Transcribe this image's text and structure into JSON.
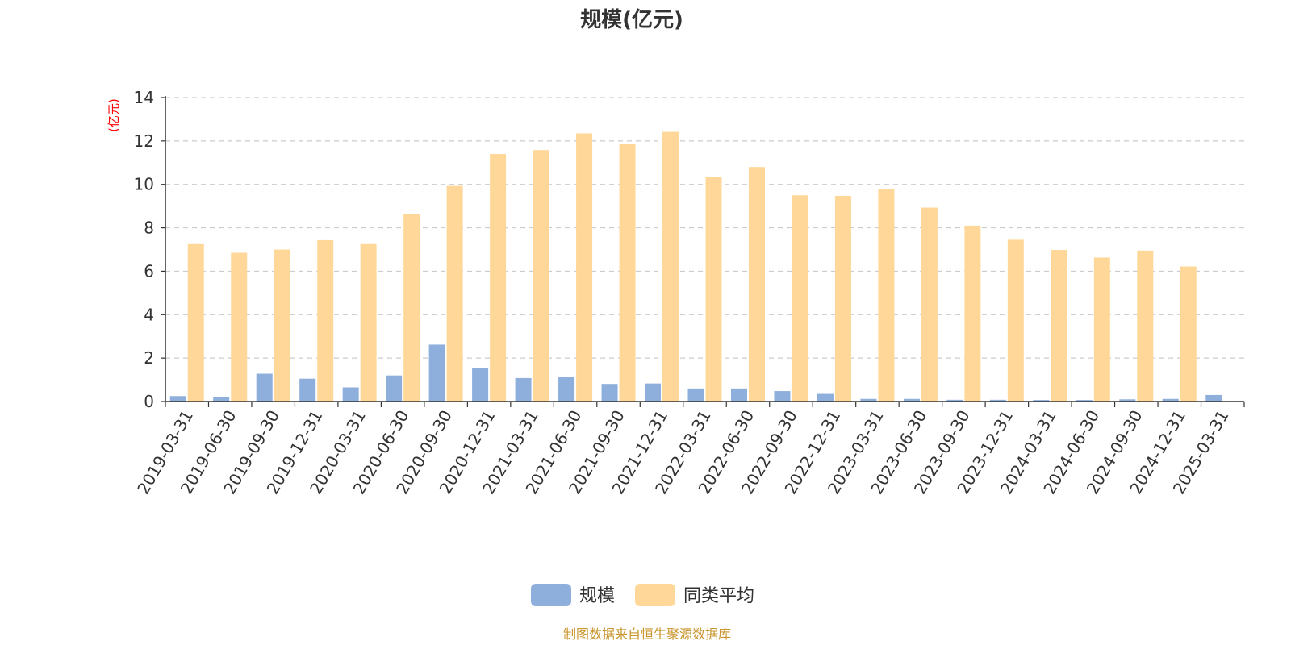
{
  "chart_data": {
    "type": "bar",
    "title": "规模(亿元)",
    "ylabel": "(亿元)",
    "xlabel": "",
    "ylim": [
      0,
      14
    ],
    "yticks": [
      0,
      2,
      4,
      6,
      8,
      10,
      12,
      14
    ],
    "grid": true,
    "legend_position": "bottom-center",
    "categories": [
      "2019-03-31",
      "2019-06-30",
      "2019-09-30",
      "2019-12-31",
      "2020-03-31",
      "2020-06-30",
      "2020-09-30",
      "2020-12-31",
      "2021-03-31",
      "2021-06-30",
      "2021-09-30",
      "2021-12-31",
      "2022-03-31",
      "2022-06-30",
      "2022-09-30",
      "2022-12-31",
      "2023-03-31",
      "2023-06-30",
      "2023-09-30",
      "2023-12-31",
      "2024-03-31",
      "2024-06-30",
      "2024-09-30",
      "2024-12-31",
      "2025-03-31"
    ],
    "series": [
      {
        "name": "规模",
        "color": "#8eaedc",
        "values": [
          0.25,
          0.22,
          1.28,
          1.05,
          0.65,
          1.2,
          2.62,
          1.53,
          1.08,
          1.13,
          0.81,
          0.83,
          0.6,
          0.6,
          0.48,
          0.35,
          0.12,
          0.12,
          0.08,
          0.08,
          0.07,
          0.07,
          0.1,
          0.12,
          0.3
        ]
      },
      {
        "name": "同类平均",
        "color": "#ffd899",
        "values": [
          7.25,
          6.85,
          7.0,
          7.43,
          7.25,
          8.62,
          9.93,
          11.4,
          11.58,
          12.35,
          11.85,
          12.42,
          10.33,
          10.8,
          9.5,
          9.47,
          9.78,
          8.93,
          8.1,
          7.45,
          6.98,
          6.63,
          6.95,
          6.22,
          null
        ]
      }
    ],
    "source_text": "制图数据来自恒生聚源数据库"
  }
}
